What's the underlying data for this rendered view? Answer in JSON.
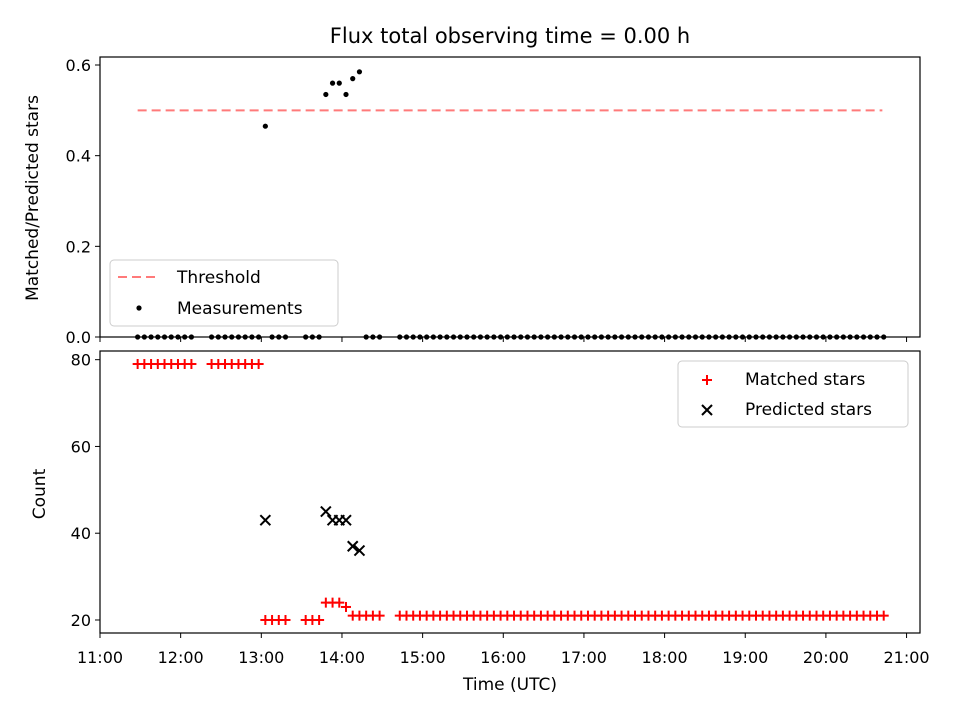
{
  "chart_data": [
    {
      "type": "scatter",
      "title": "Flux total observing time = 0.00 h",
      "xlabel": "",
      "ylabel": "Matched/Predicted stars",
      "xlim": [
        "11:00",
        "21:10"
      ],
      "ylim": [
        0,
        0.6
      ],
      "yticks": [
        "0.0",
        "0.2",
        "0.4",
        "0.6"
      ],
      "legend_position": "lower-left",
      "threshold": {
        "name": "Threshold",
        "value": 0.5,
        "x_start": "11:28",
        "x_end": "20:42",
        "color": "#ff7a7a"
      },
      "series": [
        {
          "name": "Measurements",
          "color": "#000000",
          "points": [
            [
              "11:28",
              0
            ],
            [
              "11:33",
              0
            ],
            [
              "11:38",
              0
            ],
            [
              "11:43",
              0
            ],
            [
              "11:48",
              0
            ],
            [
              "11:53",
              0
            ],
            [
              "11:58",
              0
            ],
            [
              "12:03",
              0
            ],
            [
              "12:08",
              0
            ],
            [
              "12:23",
              0
            ],
            [
              "12:28",
              0
            ],
            [
              "12:33",
              0
            ],
            [
              "12:38",
              0
            ],
            [
              "12:43",
              0
            ],
            [
              "12:48",
              0
            ],
            [
              "12:53",
              0
            ],
            [
              "12:58",
              0
            ],
            [
              "13:03",
              0.465
            ],
            [
              "13:08",
              0
            ],
            [
              "13:13",
              0
            ],
            [
              "13:18",
              0
            ],
            [
              "13:33",
              0
            ],
            [
              "13:38",
              0
            ],
            [
              "13:43",
              0
            ],
            [
              "13:48",
              0.535
            ],
            [
              "13:53",
              0.56
            ],
            [
              "13:58",
              0.56
            ],
            [
              "14:03",
              0.535
            ],
            [
              "14:08",
              0.57
            ],
            [
              "14:13",
              0.585
            ],
            [
              "14:18",
              0
            ],
            [
              "14:23",
              0
            ],
            [
              "14:28",
              0
            ],
            [
              "14:43",
              0
            ],
            [
              "14:48",
              0
            ],
            [
              "14:53",
              0
            ],
            [
              "14:58",
              0
            ],
            [
              "15:03",
              0
            ],
            [
              "15:08",
              0
            ],
            [
              "15:13",
              0
            ],
            [
              "15:18",
              0
            ],
            [
              "15:23",
              0
            ],
            [
              "15:28",
              0
            ],
            [
              "15:33",
              0
            ],
            [
              "15:38",
              0
            ],
            [
              "15:43",
              0
            ],
            [
              "15:48",
              0
            ],
            [
              "15:53",
              0
            ],
            [
              "15:58",
              0
            ],
            [
              "16:03",
              0
            ],
            [
              "16:08",
              0
            ],
            [
              "16:13",
              0
            ],
            [
              "16:18",
              0
            ],
            [
              "16:23",
              0
            ],
            [
              "16:28",
              0
            ],
            [
              "16:33",
              0
            ],
            [
              "16:38",
              0
            ],
            [
              "16:43",
              0
            ],
            [
              "16:48",
              0
            ],
            [
              "16:53",
              0
            ],
            [
              "16:58",
              0
            ],
            [
              "17:03",
              0
            ],
            [
              "17:08",
              0
            ],
            [
              "17:13",
              0
            ],
            [
              "17:18",
              0
            ],
            [
              "17:23",
              0
            ],
            [
              "17:28",
              0
            ],
            [
              "17:33",
              0
            ],
            [
              "17:38",
              0
            ],
            [
              "17:43",
              0
            ],
            [
              "17:48",
              0
            ],
            [
              "17:53",
              0
            ],
            [
              "17:58",
              0
            ],
            [
              "18:03",
              0
            ],
            [
              "18:08",
              0
            ],
            [
              "18:13",
              0
            ],
            [
              "18:18",
              0
            ],
            [
              "18:23",
              0
            ],
            [
              "18:28",
              0
            ],
            [
              "18:33",
              0
            ],
            [
              "18:38",
              0
            ],
            [
              "18:43",
              0
            ],
            [
              "18:48",
              0
            ],
            [
              "18:53",
              0
            ],
            [
              "18:58",
              0
            ],
            [
              "19:03",
              0
            ],
            [
              "19:08",
              0
            ],
            [
              "19:13",
              0
            ],
            [
              "19:18",
              0
            ],
            [
              "19:23",
              0
            ],
            [
              "19:28",
              0
            ],
            [
              "19:33",
              0
            ],
            [
              "19:38",
              0
            ],
            [
              "19:43",
              0
            ],
            [
              "19:48",
              0
            ],
            [
              "19:53",
              0
            ],
            [
              "19:58",
              0
            ],
            [
              "20:03",
              0
            ],
            [
              "20:08",
              0
            ],
            [
              "20:13",
              0
            ],
            [
              "20:18",
              0
            ],
            [
              "20:23",
              0
            ],
            [
              "20:28",
              0
            ],
            [
              "20:33",
              0
            ],
            [
              "20:38",
              0
            ],
            [
              "20:43",
              0
            ]
          ]
        }
      ]
    },
    {
      "type": "scatter",
      "title": "",
      "xlabel": "Time (UTC)",
      "ylabel": "Count",
      "xlim": [
        "11:00",
        "21:10"
      ],
      "ylim": [
        17,
        82
      ],
      "yticks": [
        "20",
        "40",
        "60",
        "80"
      ],
      "xticks": [
        "11:00",
        "12:00",
        "13:00",
        "14:00",
        "15:00",
        "16:00",
        "17:00",
        "18:00",
        "19:00",
        "20:00",
        "21:00"
      ],
      "legend_position": "upper-right",
      "series": [
        {
          "name": "Matched stars",
          "marker": "plus",
          "color": "#ff0000",
          "points": [
            [
              "11:28",
              79
            ],
            [
              "11:33",
              79
            ],
            [
              "11:38",
              79
            ],
            [
              "11:43",
              79
            ],
            [
              "11:48",
              79
            ],
            [
              "11:53",
              79
            ],
            [
              "11:58",
              79
            ],
            [
              "12:03",
              79
            ],
            [
              "12:08",
              79
            ],
            [
              "12:23",
              79
            ],
            [
              "12:28",
              79
            ],
            [
              "12:33",
              79
            ],
            [
              "12:38",
              79
            ],
            [
              "12:43",
              79
            ],
            [
              "12:48",
              79
            ],
            [
              "12:53",
              79
            ],
            [
              "12:58",
              79
            ],
            [
              "13:03",
              20
            ],
            [
              "13:08",
              20
            ],
            [
              "13:13",
              20
            ],
            [
              "13:18",
              20
            ],
            [
              "13:33",
              20
            ],
            [
              "13:38",
              20
            ],
            [
              "13:43",
              20
            ],
            [
              "13:48",
              24
            ],
            [
              "13:53",
              24
            ],
            [
              "13:58",
              24
            ],
            [
              "14:03",
              23
            ],
            [
              "14:08",
              21
            ],
            [
              "14:13",
              21
            ],
            [
              "14:18",
              21
            ],
            [
              "14:23",
              21
            ],
            [
              "14:28",
              21
            ],
            [
              "14:43",
              21
            ],
            [
              "14:48",
              21
            ],
            [
              "14:53",
              21
            ],
            [
              "14:58",
              21
            ],
            [
              "15:03",
              21
            ],
            [
              "15:08",
              21
            ],
            [
              "15:13",
              21
            ],
            [
              "15:18",
              21
            ],
            [
              "15:23",
              21
            ],
            [
              "15:28",
              21
            ],
            [
              "15:33",
              21
            ],
            [
              "15:38",
              21
            ],
            [
              "15:43",
              21
            ],
            [
              "15:48",
              21
            ],
            [
              "15:53",
              21
            ],
            [
              "15:58",
              21
            ],
            [
              "16:03",
              21
            ],
            [
              "16:08",
              21
            ],
            [
              "16:13",
              21
            ],
            [
              "16:18",
              21
            ],
            [
              "16:23",
              21
            ],
            [
              "16:28",
              21
            ],
            [
              "16:33",
              21
            ],
            [
              "16:38",
              21
            ],
            [
              "16:43",
              21
            ],
            [
              "16:48",
              21
            ],
            [
              "16:53",
              21
            ],
            [
              "16:58",
              21
            ],
            [
              "17:03",
              21
            ],
            [
              "17:08",
              21
            ],
            [
              "17:13",
              21
            ],
            [
              "17:18",
              21
            ],
            [
              "17:23",
              21
            ],
            [
              "17:28",
              21
            ],
            [
              "17:33",
              21
            ],
            [
              "17:38",
              21
            ],
            [
              "17:43",
              21
            ],
            [
              "17:48",
              21
            ],
            [
              "17:53",
              21
            ],
            [
              "17:58",
              21
            ],
            [
              "18:03",
              21
            ],
            [
              "18:08",
              21
            ],
            [
              "18:13",
              21
            ],
            [
              "18:18",
              21
            ],
            [
              "18:23",
              21
            ],
            [
              "18:28",
              21
            ],
            [
              "18:33",
              21
            ],
            [
              "18:38",
              21
            ],
            [
              "18:43",
              21
            ],
            [
              "18:48",
              21
            ],
            [
              "18:53",
              21
            ],
            [
              "18:58",
              21
            ],
            [
              "19:03",
              21
            ],
            [
              "19:08",
              21
            ],
            [
              "19:13",
              21
            ],
            [
              "19:18",
              21
            ],
            [
              "19:23",
              21
            ],
            [
              "19:28",
              21
            ],
            [
              "19:33",
              21
            ],
            [
              "19:38",
              21
            ],
            [
              "19:43",
              21
            ],
            [
              "19:48",
              21
            ],
            [
              "19:53",
              21
            ],
            [
              "19:58",
              21
            ],
            [
              "20:03",
              21
            ],
            [
              "20:08",
              21
            ],
            [
              "20:13",
              21
            ],
            [
              "20:18",
              21
            ],
            [
              "20:23",
              21
            ],
            [
              "20:28",
              21
            ],
            [
              "20:33",
              21
            ],
            [
              "20:38",
              21
            ],
            [
              "20:43",
              21
            ]
          ]
        },
        {
          "name": "Predicted stars",
          "marker": "x",
          "color": "#000000",
          "points": [
            [
              "13:03",
              43
            ],
            [
              "13:48",
              45
            ],
            [
              "13:53",
              43
            ],
            [
              "13:58",
              43
            ],
            [
              "14:03",
              43
            ],
            [
              "14:08",
              37
            ],
            [
              "14:13",
              36
            ]
          ]
        }
      ]
    }
  ]
}
